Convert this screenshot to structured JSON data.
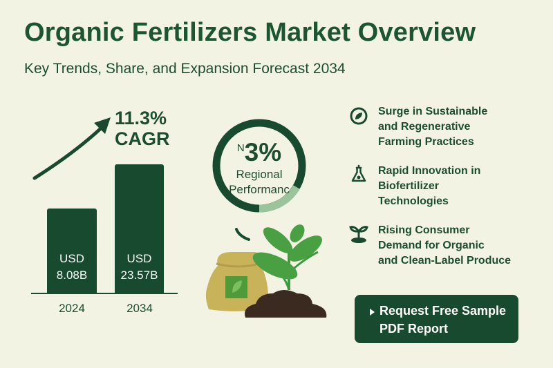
{
  "title": "Organic Fertilizers Market Overview",
  "subtitle": "Key Trends, Share, and Expansion Forecast 2034",
  "growth": {
    "cagr_value": "11.3%",
    "cagr_label": "CAGR"
  },
  "bars": [
    {
      "year": "2024",
      "currency": "USD",
      "value": "8.08B",
      "amount": 8.08
    },
    {
      "year": "2034",
      "currency": "USD",
      "value": "23.57B",
      "amount": 23.57
    }
  ],
  "ring": {
    "prefix": "N",
    "value": "3%",
    "label_line1": "Regional",
    "label_line2": "Performanc"
  },
  "trends": [
    {
      "icon": "leaf-circle-icon",
      "lines": [
        "Surge in Sustainable",
        "and Regenerative",
        "Farming Practices"
      ]
    },
    {
      "icon": "flask-icon",
      "lines": [
        "Rapid Innovation in",
        "Biofertilizer",
        "Technologies"
      ]
    },
    {
      "icon": "sprout-icon",
      "lines": [
        "Rising Consumer",
        "Demand for Organic",
        "and Clean-Label Produce"
      ]
    }
  ],
  "cta": {
    "line1": "Request Free Sample",
    "line2": "PDF Report"
  },
  "colors": {
    "background": "#f3f3e4",
    "primary": "#174a2e",
    "accent_light": "#9cc49c",
    "leaf": "#3e9a3e",
    "bag": "#c9b35a",
    "soil": "#3a2a20"
  }
}
